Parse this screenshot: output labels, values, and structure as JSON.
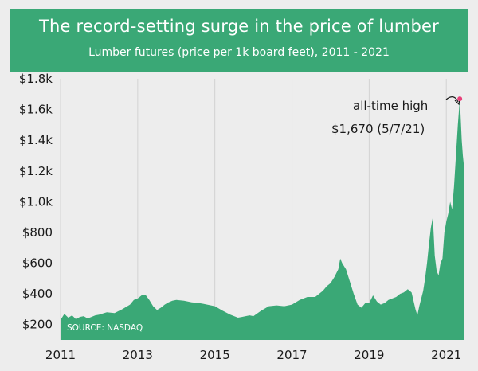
{
  "chart_data": {
    "type": "area",
    "title": "The record-setting surge in the price of lumber",
    "subtitle": "Lumber futures (price per 1k board feet), 2011 - 2021",
    "source": "SOURCE: NASDAQ",
    "xlabel": "",
    "ylabel": "",
    "x_ticks": [
      "2011",
      "2013",
      "2015",
      "2017",
      "2019",
      "2021"
    ],
    "x_tick_values": [
      2011,
      2013,
      2015,
      2017,
      2019,
      2021
    ],
    "y_ticks": [
      "$200",
      "$400",
      "$600",
      "$800",
      "$1.0k",
      "$1.2k",
      "$1.4k",
      "$1.6k",
      "$1.8k"
    ],
    "y_tick_values": [
      200,
      400,
      600,
      800,
      1000,
      1200,
      1400,
      1600,
      1800
    ],
    "xlim": [
      2011,
      2021.45
    ],
    "ylim": [
      100,
      1800
    ],
    "grid": "vertical",
    "color": "#3aa876",
    "annotation": {
      "label": "all-time high",
      "value_label": "$1,670 (5/7/21)",
      "x": 2021.35,
      "y": 1670,
      "marker_color": "#e8407a"
    },
    "series": [
      {
        "values": [
          [
            2011.0,
            230
          ],
          [
            2011.1,
            270
          ],
          [
            2011.2,
            245
          ],
          [
            2011.3,
            260
          ],
          [
            2011.4,
            235
          ],
          [
            2011.5,
            250
          ],
          [
            2011.6,
            255
          ],
          [
            2011.7,
            240
          ],
          [
            2011.8,
            250
          ],
          [
            2011.9,
            260
          ],
          [
            2012.0,
            265
          ],
          [
            2012.2,
            280
          ],
          [
            2012.4,
            275
          ],
          [
            2012.6,
            300
          ],
          [
            2012.8,
            330
          ],
          [
            2012.9,
            360
          ],
          [
            2013.0,
            370
          ],
          [
            2013.1,
            390
          ],
          [
            2013.2,
            395
          ],
          [
            2013.3,
            360
          ],
          [
            2013.4,
            320
          ],
          [
            2013.5,
            295
          ],
          [
            2013.6,
            310
          ],
          [
            2013.7,
            330
          ],
          [
            2013.8,
            345
          ],
          [
            2013.9,
            355
          ],
          [
            2014.0,
            360
          ],
          [
            2014.2,
            355
          ],
          [
            2014.4,
            345
          ],
          [
            2014.6,
            340
          ],
          [
            2014.8,
            330
          ],
          [
            2015.0,
            320
          ],
          [
            2015.2,
            290
          ],
          [
            2015.4,
            265
          ],
          [
            2015.5,
            255
          ],
          [
            2015.6,
            245
          ],
          [
            2015.7,
            250
          ],
          [
            2015.8,
            255
          ],
          [
            2015.9,
            260
          ],
          [
            2016.0,
            255
          ],
          [
            2016.2,
            290
          ],
          [
            2016.4,
            320
          ],
          [
            2016.6,
            325
          ],
          [
            2016.8,
            320
          ],
          [
            2017.0,
            330
          ],
          [
            2017.2,
            360
          ],
          [
            2017.4,
            380
          ],
          [
            2017.6,
            380
          ],
          [
            2017.8,
            420
          ],
          [
            2017.9,
            450
          ],
          [
            2018.0,
            470
          ],
          [
            2018.1,
            510
          ],
          [
            2018.2,
            560
          ],
          [
            2018.25,
            630
          ],
          [
            2018.3,
            600
          ],
          [
            2018.4,
            560
          ],
          [
            2018.5,
            480
          ],
          [
            2018.6,
            400
          ],
          [
            2018.7,
            330
          ],
          [
            2018.8,
            310
          ],
          [
            2018.9,
            340
          ],
          [
            2019.0,
            340
          ],
          [
            2019.1,
            390
          ],
          [
            2019.2,
            350
          ],
          [
            2019.3,
            330
          ],
          [
            2019.4,
            340
          ],
          [
            2019.5,
            360
          ],
          [
            2019.6,
            370
          ],
          [
            2019.7,
            380
          ],
          [
            2019.8,
            400
          ],
          [
            2019.9,
            410
          ],
          [
            2020.0,
            430
          ],
          [
            2020.1,
            410
          ],
          [
            2020.2,
            300
          ],
          [
            2020.25,
            260
          ],
          [
            2020.3,
            320
          ],
          [
            2020.4,
            420
          ],
          [
            2020.45,
            500
          ],
          [
            2020.5,
            600
          ],
          [
            2020.55,
            720
          ],
          [
            2020.6,
            830
          ],
          [
            2020.65,
            900
          ],
          [
            2020.7,
            650
          ],
          [
            2020.75,
            550
          ],
          [
            2020.8,
            520
          ],
          [
            2020.85,
            600
          ],
          [
            2020.9,
            630
          ],
          [
            2020.95,
            800
          ],
          [
            2021.0,
            870
          ],
          [
            2021.05,
            920
          ],
          [
            2021.1,
            1000
          ],
          [
            2021.15,
            950
          ],
          [
            2021.2,
            1100
          ],
          [
            2021.25,
            1300
          ],
          [
            2021.3,
            1500
          ],
          [
            2021.35,
            1670
          ],
          [
            2021.4,
            1400
          ],
          [
            2021.43,
            1300
          ],
          [
            2021.45,
            1250
          ]
        ]
      }
    ]
  }
}
